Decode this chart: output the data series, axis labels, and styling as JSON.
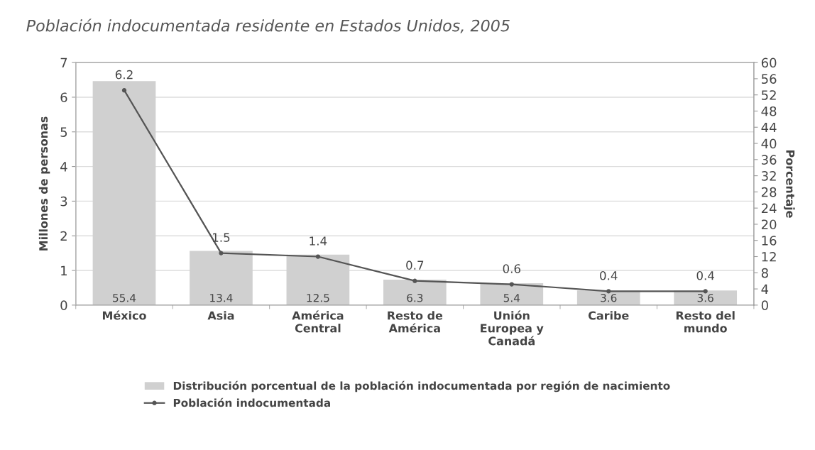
{
  "chart_data": {
    "type": "bar",
    "title": "Población indocumentada residente en Estados Unidos, 2005",
    "ylabel": "Millones de personas",
    "y2label": "Porcentaje",
    "categories": [
      "México",
      "Asia",
      "América\nCentral",
      "Resto de\nAmérica",
      "Unión\nEuropea y\nCanadá",
      "Caribe",
      "Resto del\nmundo"
    ],
    "series": [
      {
        "name": "Distribución porcentual de la población indocumentada por región de nacimiento",
        "axis": "y2",
        "color": "#d0d0d0",
        "values": [
          55.4,
          13.4,
          12.5,
          6.3,
          5.4,
          3.6,
          3.6
        ]
      },
      {
        "name": "Población indocumentada",
        "type": "line",
        "axis": "y",
        "color": "#555555",
        "values": [
          6.2,
          1.5,
          1.4,
          0.7,
          0.6,
          0.4,
          0.4
        ]
      }
    ],
    "ylim": [
      0,
      7
    ],
    "yticks": [
      0,
      1,
      2,
      3,
      4,
      5,
      6,
      7
    ],
    "y2lim": [
      0,
      60
    ],
    "y2ticks": [
      0,
      4,
      8,
      12,
      16,
      20,
      24,
      28,
      32,
      36,
      40,
      44,
      48,
      52,
      56,
      60
    ],
    "grid": "y",
    "legend": "bottom",
    "data_labels": true,
    "marker": "circle",
    "line_style": "solid"
  }
}
